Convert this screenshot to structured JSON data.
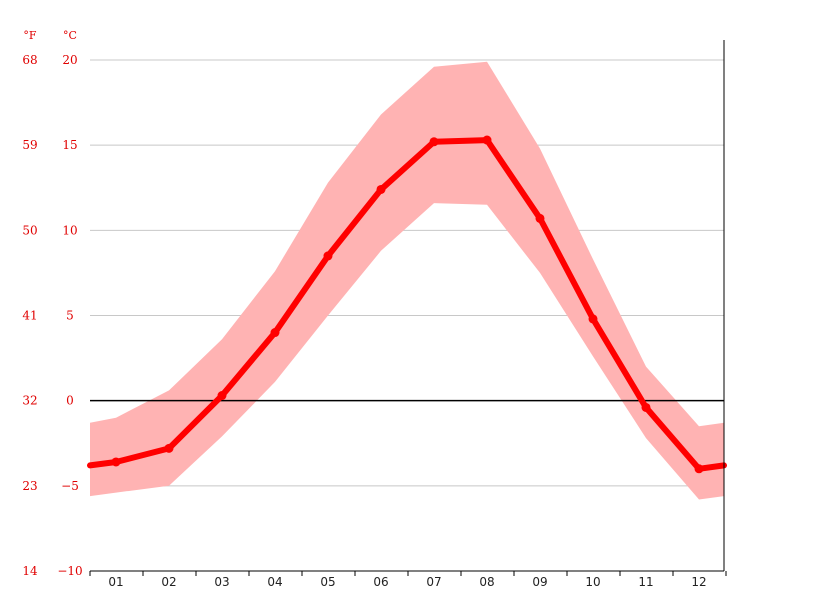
{
  "chart_data": {
    "type": "line",
    "title": "",
    "xlabel": "",
    "ylabel": "",
    "categories": [
      "01",
      "02",
      "03",
      "04",
      "05",
      "06",
      "07",
      "08",
      "09",
      "10",
      "11",
      "12"
    ],
    "series": [
      {
        "values": [
          -3.6,
          -2.8,
          0.3,
          4.0,
          8.5,
          12.4,
          15.2,
          15.3,
          10.7,
          4.8,
          -0.4,
          -4.0
        ],
        "color": "#ff0000"
      }
    ],
    "band": {
      "max": [
        -1.0,
        0.6,
        3.6,
        7.6,
        12.8,
        16.8,
        19.6,
        19.9,
        14.8,
        8.3,
        2.0,
        -1.5
      ],
      "min": [
        -5.4,
        -5.0,
        -2.1,
        1.1,
        5.0,
        8.8,
        11.6,
        11.5,
        7.5,
        2.6,
        -2.2,
        -5.8
      ],
      "color": "#ffb3b3"
    },
    "edge_values": {
      "left": {
        "line": -3.8,
        "max": -1.3,
        "min": -5.6
      },
      "right": {
        "line": -3.8,
        "max": -1.3,
        "min": -5.6
      }
    },
    "y_axis_unit_c": "°C",
    "y_axis_unit_f": "°F",
    "yticks_c": [
      "20",
      "15",
      "10",
      "5",
      "0",
      "−5",
      "−10"
    ],
    "yticks_f": [
      "68",
      "59",
      "50",
      "41",
      "32",
      "23",
      "14"
    ],
    "ylim": [
      -10,
      20
    ],
    "grid": true,
    "zero_line": true,
    "grid_color": "#c8c8c8",
    "tick_color": "#e00000"
  }
}
